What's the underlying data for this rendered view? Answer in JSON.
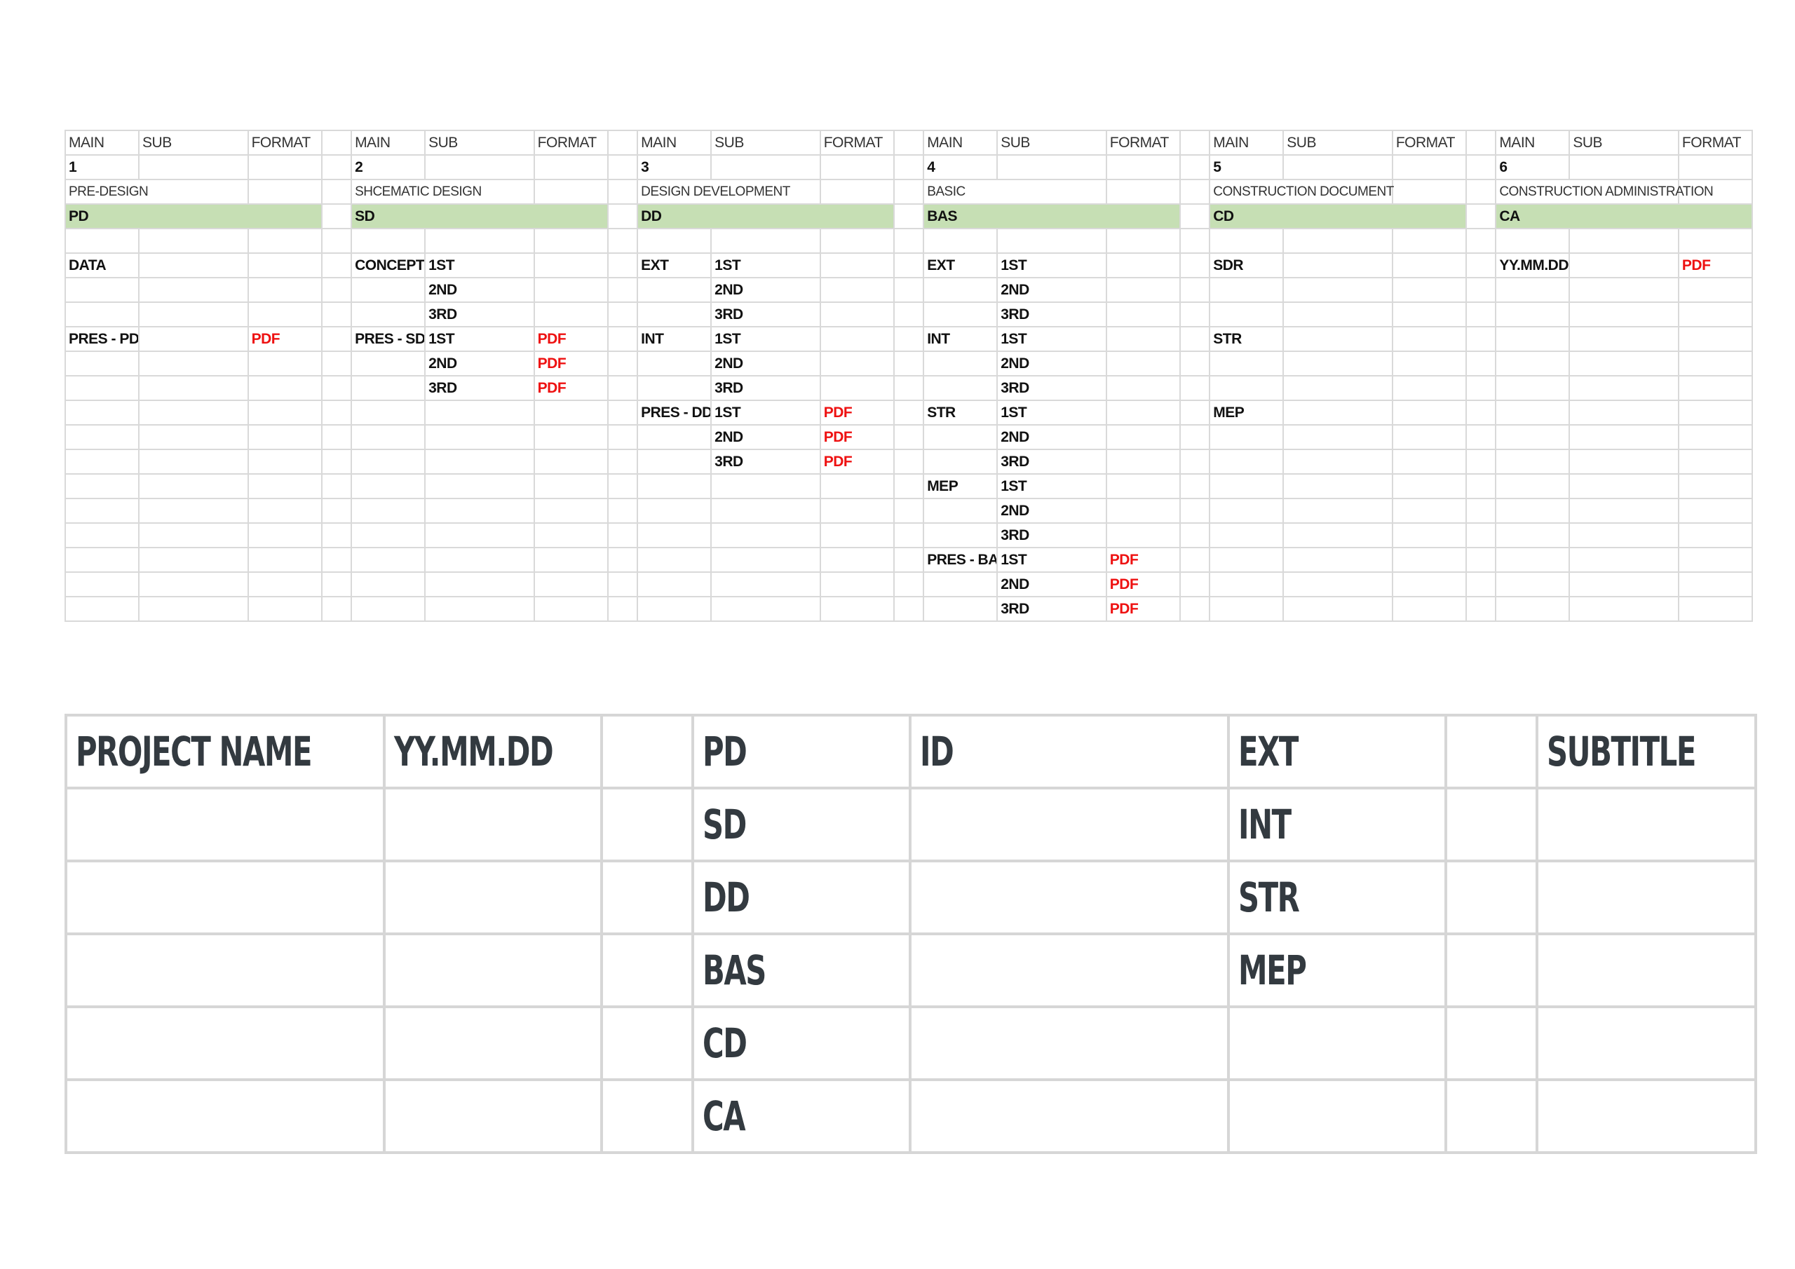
{
  "sheet": {
    "stages": [
      {
        "header": [
          "MAIN",
          "SUB",
          "FORMAT"
        ],
        "number": "1",
        "name": "PRE-DESIGN",
        "code": "PD",
        "rows": [
          [
            "",
            "",
            ""
          ],
          [
            "DATA",
            "",
            ""
          ],
          [
            "",
            "",
            ""
          ],
          [
            "",
            "",
            ""
          ],
          [
            "PRES - PD",
            "",
            "PDF"
          ],
          [
            "",
            "",
            ""
          ],
          [
            "",
            "",
            ""
          ],
          [
            "",
            "",
            ""
          ],
          [
            "",
            "",
            ""
          ],
          [
            "",
            "",
            ""
          ],
          [
            "",
            "",
            ""
          ],
          [
            "",
            "",
            ""
          ],
          [
            "",
            "",
            ""
          ],
          [
            "",
            "",
            ""
          ],
          [
            "",
            "",
            ""
          ],
          [
            "",
            "",
            ""
          ]
        ]
      },
      {
        "header": [
          "MAIN",
          "SUB",
          "FORMAT"
        ],
        "number": "2",
        "name": "SHCEMATIC DESIGN",
        "code": "SD",
        "rows": [
          [
            "",
            "",
            ""
          ],
          [
            "CONCEPT",
            "1ST",
            ""
          ],
          [
            "",
            "2ND",
            ""
          ],
          [
            "",
            "3RD",
            ""
          ],
          [
            "PRES - SD",
            "1ST",
            "PDF"
          ],
          [
            "",
            "2ND",
            "PDF"
          ],
          [
            "",
            "3RD",
            "PDF"
          ],
          [
            "",
            "",
            ""
          ],
          [
            "",
            "",
            ""
          ],
          [
            "",
            "",
            ""
          ],
          [
            "",
            "",
            ""
          ],
          [
            "",
            "",
            ""
          ],
          [
            "",
            "",
            ""
          ],
          [
            "",
            "",
            ""
          ],
          [
            "",
            "",
            ""
          ],
          [
            "",
            "",
            ""
          ]
        ]
      },
      {
        "header": [
          "MAIN",
          "SUB",
          "FORMAT"
        ],
        "number": "3",
        "name": "DESIGN DEVELOPMENT",
        "code": "DD",
        "rows": [
          [
            "",
            "",
            ""
          ],
          [
            "EXT",
            "1ST",
            ""
          ],
          [
            "",
            "2ND",
            ""
          ],
          [
            "",
            "3RD",
            ""
          ],
          [
            "INT",
            "1ST",
            ""
          ],
          [
            "",
            "2ND",
            ""
          ],
          [
            "",
            "3RD",
            ""
          ],
          [
            "PRES - DD",
            "1ST",
            "PDF"
          ],
          [
            "",
            "2ND",
            "PDF"
          ],
          [
            "",
            "3RD",
            "PDF"
          ],
          [
            "",
            "",
            ""
          ],
          [
            "",
            "",
            ""
          ],
          [
            "",
            "",
            ""
          ],
          [
            "",
            "",
            ""
          ],
          [
            "",
            "",
            ""
          ],
          [
            "",
            "",
            ""
          ]
        ]
      },
      {
        "header": [
          "MAIN",
          "SUB",
          "FORMAT"
        ],
        "number": "4",
        "name": "BASIC",
        "code": "BAS",
        "rows": [
          [
            "",
            "",
            ""
          ],
          [
            "EXT",
            "1ST",
            ""
          ],
          [
            "",
            "2ND",
            ""
          ],
          [
            "",
            "3RD",
            ""
          ],
          [
            "INT",
            "1ST",
            ""
          ],
          [
            "",
            "2ND",
            ""
          ],
          [
            "",
            "3RD",
            ""
          ],
          [
            "STR",
            "1ST",
            ""
          ],
          [
            "",
            "2ND",
            ""
          ],
          [
            "",
            "3RD",
            ""
          ],
          [
            "MEP",
            "1ST",
            ""
          ],
          [
            "",
            "2ND",
            ""
          ],
          [
            "",
            "3RD",
            ""
          ],
          [
            "PRES - BAS",
            "1ST",
            "PDF"
          ],
          [
            "",
            "2ND",
            "PDF"
          ],
          [
            "",
            "3RD",
            "PDF"
          ]
        ]
      },
      {
        "header": [
          "MAIN",
          "SUB",
          "FORMAT"
        ],
        "number": "5",
        "name": "CONSTRUCTION DOCUMENT",
        "code": "CD",
        "rows": [
          [
            "",
            "",
            ""
          ],
          [
            "SDR",
            "",
            ""
          ],
          [
            "",
            "",
            ""
          ],
          [
            "",
            "",
            ""
          ],
          [
            "STR",
            "",
            ""
          ],
          [
            "",
            "",
            ""
          ],
          [
            "",
            "",
            ""
          ],
          [
            "MEP",
            "",
            ""
          ],
          [
            "",
            "",
            ""
          ],
          [
            "",
            "",
            ""
          ],
          [
            "",
            "",
            ""
          ],
          [
            "",
            "",
            ""
          ],
          [
            "",
            "",
            ""
          ],
          [
            "",
            "",
            ""
          ],
          [
            "",
            "",
            ""
          ],
          [
            "",
            "",
            ""
          ]
        ]
      },
      {
        "header": [
          "MAIN",
          "SUB",
          "FORMAT"
        ],
        "number": "6",
        "name": "CONSTRUCTION ADMINISTRATION",
        "code": "CA",
        "rows": [
          [
            "",
            "",
            ""
          ],
          [
            "YY.MM.DD",
            "",
            "PDF"
          ],
          [
            "",
            "",
            ""
          ],
          [
            "",
            "",
            ""
          ],
          [
            "",
            "",
            ""
          ],
          [
            "",
            "",
            ""
          ],
          [
            "",
            "",
            ""
          ],
          [
            "",
            "",
            ""
          ],
          [
            "",
            "",
            ""
          ],
          [
            "",
            "",
            ""
          ],
          [
            "",
            "",
            ""
          ],
          [
            "",
            "",
            ""
          ],
          [
            "",
            "",
            ""
          ],
          [
            "",
            "",
            ""
          ],
          [
            "",
            "",
            ""
          ],
          [
            "",
            "",
            ""
          ]
        ]
      }
    ]
  },
  "naming": {
    "rows": [
      [
        "PROJECT NAME",
        "YY.MM.DD",
        "",
        "PD",
        "ID",
        "EXT",
        "",
        "SUBTITLE"
      ],
      [
        "",
        "",
        "",
        "SD",
        "",
        "INT",
        "",
        ""
      ],
      [
        "",
        "",
        "",
        "DD",
        "",
        "STR",
        "",
        ""
      ],
      [
        "",
        "",
        "",
        "BAS",
        "",
        "MEP",
        "",
        ""
      ],
      [
        "",
        "",
        "",
        "CD",
        "",
        "",
        "",
        ""
      ],
      [
        "",
        "",
        "",
        "CA",
        "",
        "",
        "",
        ""
      ]
    ]
  },
  "colors": {
    "stage_code_fill": "#c6dfb4",
    "pdf_text": "#ee1111",
    "grid_line": "#d9d9d9"
  }
}
